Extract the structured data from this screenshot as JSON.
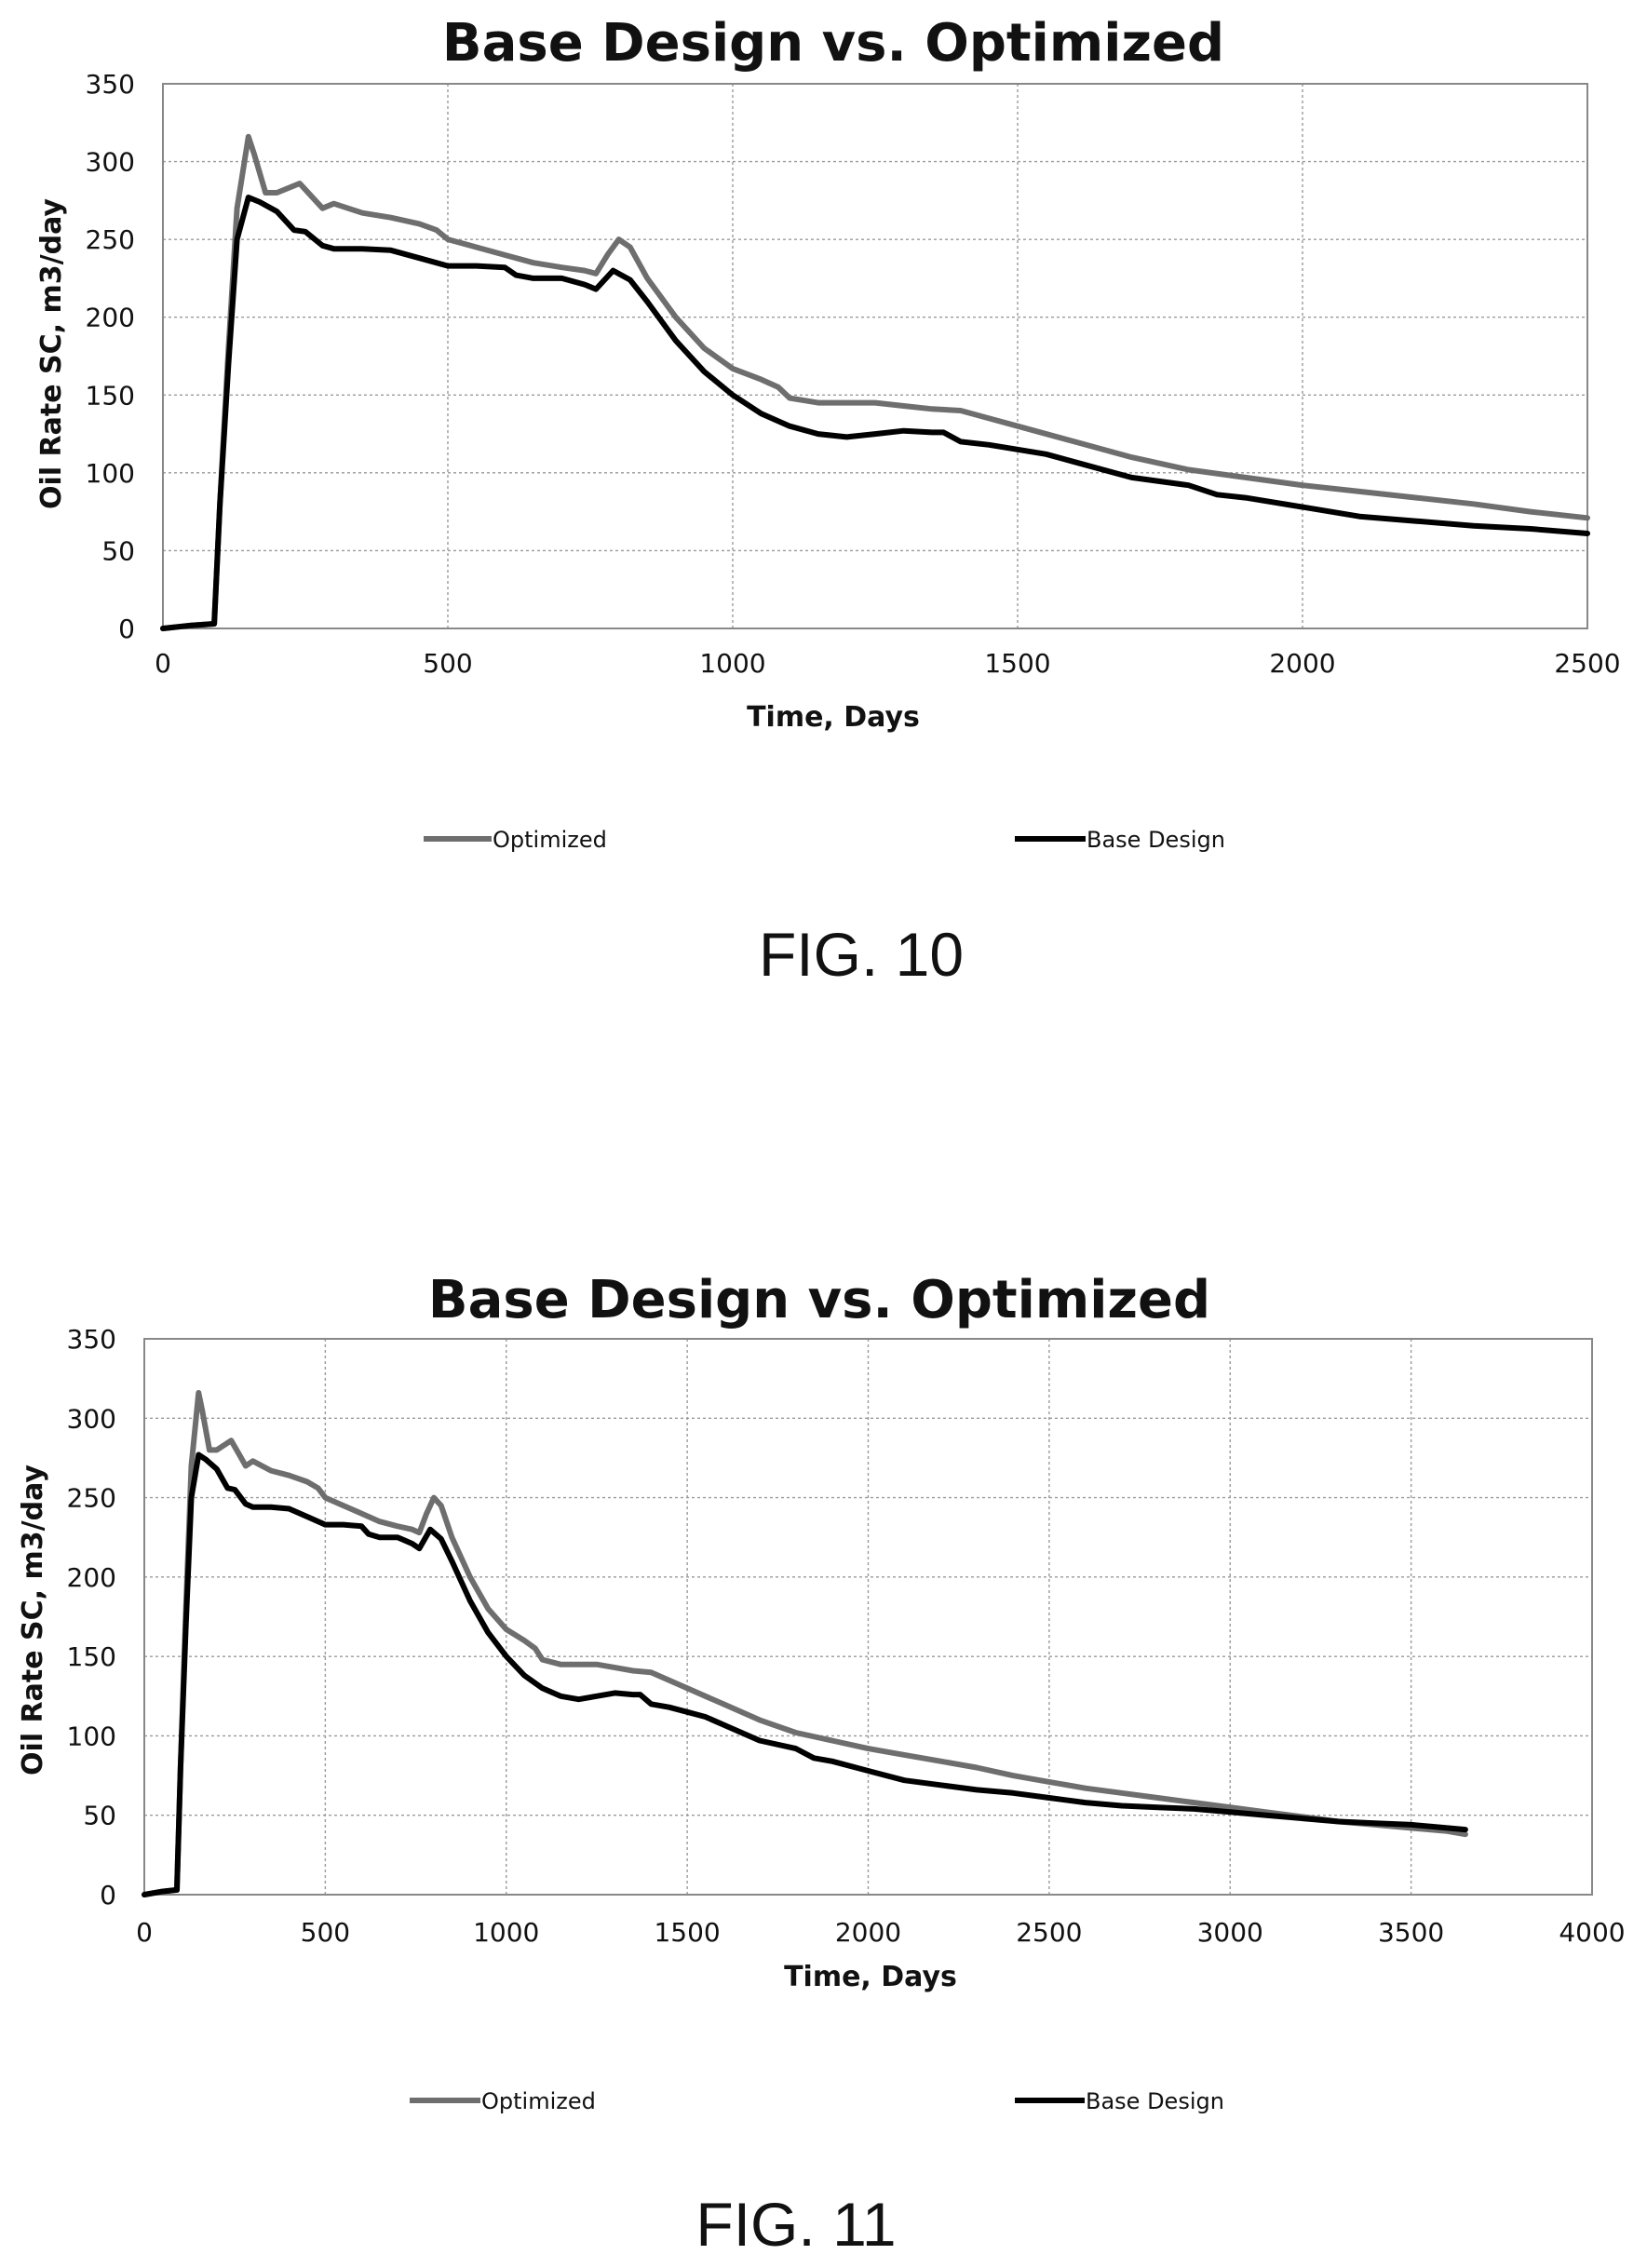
{
  "chart_data": [
    {
      "type": "line",
      "title": "Base Design vs. Optimized",
      "xlabel": "Time, Days",
      "ylabel": "Oil Rate SC, m3/day",
      "xlim": [
        0,
        2500
      ],
      "ylim": [
        0,
        350
      ],
      "xticks": [
        "0",
        "500",
        "1000",
        "1500",
        "2000",
        "2500"
      ],
      "yticks": [
        "0",
        "50",
        "100",
        "150",
        "200",
        "250",
        "300",
        "350"
      ],
      "grid": true,
      "legend_position": "bottom",
      "caption": "FIG. 10",
      "series": [
        {
          "name": "Optimized",
          "color": "#6e6e6e",
          "x": [
            0,
            50,
            90,
            100,
            115,
            130,
            150,
            160,
            180,
            200,
            240,
            260,
            280,
            300,
            350,
            400,
            450,
            480,
            500,
            550,
            600,
            650,
            700,
            740,
            760,
            780,
            800,
            820,
            850,
            900,
            950,
            1000,
            1050,
            1080,
            1100,
            1150,
            1200,
            1250,
            1300,
            1350,
            1400,
            1450,
            1500,
            1600,
            1700,
            1800,
            1900,
            2000,
            2100,
            2200,
            2300,
            2400,
            2500
          ],
          "y": [
            0,
            2,
            3,
            80,
            180,
            270,
            316,
            305,
            280,
            280,
            286,
            278,
            270,
            273,
            267,
            264,
            260,
            256,
            250,
            245,
            240,
            235,
            232,
            230,
            228,
            240,
            250,
            245,
            225,
            200,
            180,
            167,
            160,
            155,
            148,
            145,
            145,
            145,
            143,
            141,
            140,
            135,
            130,
            120,
            110,
            102,
            97,
            92,
            88,
            84,
            80,
            75,
            71
          ]
        },
        {
          "name": "Base Design",
          "color": "#000000",
          "x": [
            0,
            50,
            90,
            100,
            115,
            130,
            150,
            170,
            200,
            230,
            250,
            280,
            300,
            350,
            400,
            450,
            500,
            550,
            600,
            620,
            650,
            700,
            740,
            760,
            790,
            820,
            850,
            900,
            950,
            1000,
            1050,
            1100,
            1150,
            1200,
            1250,
            1300,
            1350,
            1370,
            1400,
            1450,
            1500,
            1550,
            1600,
            1700,
            1800,
            1850,
            1900,
            2000,
            2100,
            2200,
            2300,
            2400,
            2500
          ],
          "y": [
            0,
            2,
            3,
            80,
            170,
            250,
            277,
            274,
            268,
            256,
            255,
            246,
            244,
            244,
            243,
            238,
            233,
            233,
            232,
            227,
            225,
            225,
            221,
            218,
            230,
            224,
            210,
            185,
            165,
            150,
            138,
            130,
            125,
            123,
            125,
            127,
            126,
            126,
            120,
            118,
            115,
            112,
            107,
            97,
            92,
            86,
            84,
            78,
            72,
            69,
            66,
            64,
            61
          ]
        }
      ]
    },
    {
      "type": "line",
      "title": "Base Design vs. Optimized",
      "xlabel": "Time, Days",
      "ylabel": "Oil Rate SC, m3/day",
      "xlim": [
        0,
        4000
      ],
      "ylim": [
        0,
        350
      ],
      "xticks": [
        "0",
        "500",
        "1000",
        "1500",
        "2000",
        "2500",
        "3000",
        "3500",
        "4000"
      ],
      "yticks": [
        "0",
        "50",
        "100",
        "150",
        "200",
        "250",
        "300",
        "350"
      ],
      "grid": true,
      "legend_position": "bottom",
      "caption": "FIG. 11",
      "series": [
        {
          "name": "Optimized",
          "color": "#6e6e6e",
          "x": [
            0,
            50,
            90,
            100,
            115,
            130,
            150,
            160,
            180,
            200,
            240,
            260,
            280,
            300,
            350,
            400,
            450,
            480,
            500,
            550,
            600,
            650,
            700,
            740,
            760,
            780,
            800,
            820,
            850,
            900,
            950,
            1000,
            1050,
            1080,
            1100,
            1150,
            1200,
            1250,
            1300,
            1350,
            1400,
            1450,
            1500,
            1600,
            1700,
            1800,
            1900,
            2000,
            2100,
            2200,
            2300,
            2400,
            2500,
            2600,
            2700,
            2800,
            2900,
            3000,
            3100,
            3200,
            3300,
            3400,
            3500,
            3600,
            3650
          ],
          "y": [
            0,
            2,
            3,
            80,
            180,
            270,
            316,
            305,
            280,
            280,
            286,
            278,
            270,
            273,
            267,
            264,
            260,
            256,
            250,
            245,
            240,
            235,
            232,
            230,
            228,
            240,
            250,
            245,
            225,
            200,
            180,
            167,
            160,
            155,
            148,
            145,
            145,
            145,
            143,
            141,
            140,
            135,
            130,
            120,
            110,
            102,
            97,
            92,
            88,
            84,
            80,
            75,
            71,
            67,
            64,
            61,
            58,
            55,
            52,
            49,
            46,
            44,
            42,
            40,
            38
          ]
        },
        {
          "name": "Base Design",
          "color": "#000000",
          "x": [
            0,
            50,
            90,
            100,
            115,
            130,
            150,
            170,
            200,
            230,
            250,
            280,
            300,
            350,
            400,
            450,
            500,
            550,
            600,
            620,
            650,
            700,
            740,
            760,
            790,
            820,
            850,
            900,
            950,
            1000,
            1050,
            1100,
            1150,
            1200,
            1250,
            1300,
            1350,
            1370,
            1400,
            1450,
            1500,
            1550,
            1600,
            1700,
            1800,
            1850,
            1900,
            2000,
            2100,
            2200,
            2300,
            2400,
            2500,
            2600,
            2700,
            2800,
            2900,
            3000,
            3100,
            3200,
            3300,
            3400,
            3500,
            3600,
            3650
          ],
          "y": [
            0,
            2,
            3,
            80,
            170,
            250,
            277,
            274,
            268,
            256,
            255,
            246,
            244,
            244,
            243,
            238,
            233,
            233,
            232,
            227,
            225,
            225,
            221,
            218,
            230,
            224,
            210,
            185,
            165,
            150,
            138,
            130,
            125,
            123,
            125,
            127,
            126,
            126,
            120,
            118,
            115,
            112,
            107,
            97,
            92,
            86,
            84,
            78,
            72,
            69,
            66,
            64,
            61,
            58,
            56,
            55,
            54,
            52,
            50,
            48,
            46,
            45,
            44,
            42,
            41
          ]
        }
      ]
    }
  ]
}
